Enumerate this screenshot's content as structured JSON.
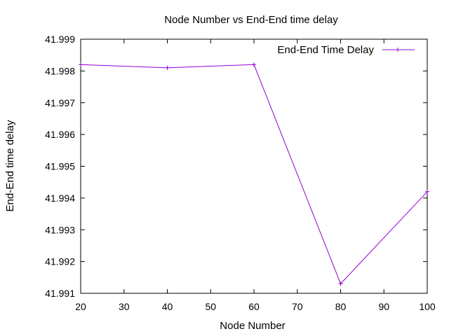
{
  "chart_data": {
    "type": "line",
    "title": "Node Number vs End-End time delay",
    "xlabel": "Node Number",
    "ylabel": "End-End time delay",
    "xlim": [
      20,
      100
    ],
    "ylim": [
      41.991,
      41.999
    ],
    "x_ticks": [
      "20",
      "30",
      "40",
      "50",
      "60",
      "70",
      "80",
      "90",
      "100"
    ],
    "y_ticks": [
      "41.991",
      "41.992",
      "41.993",
      "41.994",
      "41.995",
      "41.996",
      "41.997",
      "41.998",
      "41.999"
    ],
    "legend_position": "top-right",
    "grid": false,
    "series": [
      {
        "name": "End-End Time Delay",
        "color": "#9400d3",
        "marker": "plus",
        "x": [
          20,
          40,
          60,
          80,
          100
        ],
        "y": [
          41.9982,
          41.9981,
          41.9982,
          41.9913,
          41.9942
        ]
      }
    ]
  }
}
